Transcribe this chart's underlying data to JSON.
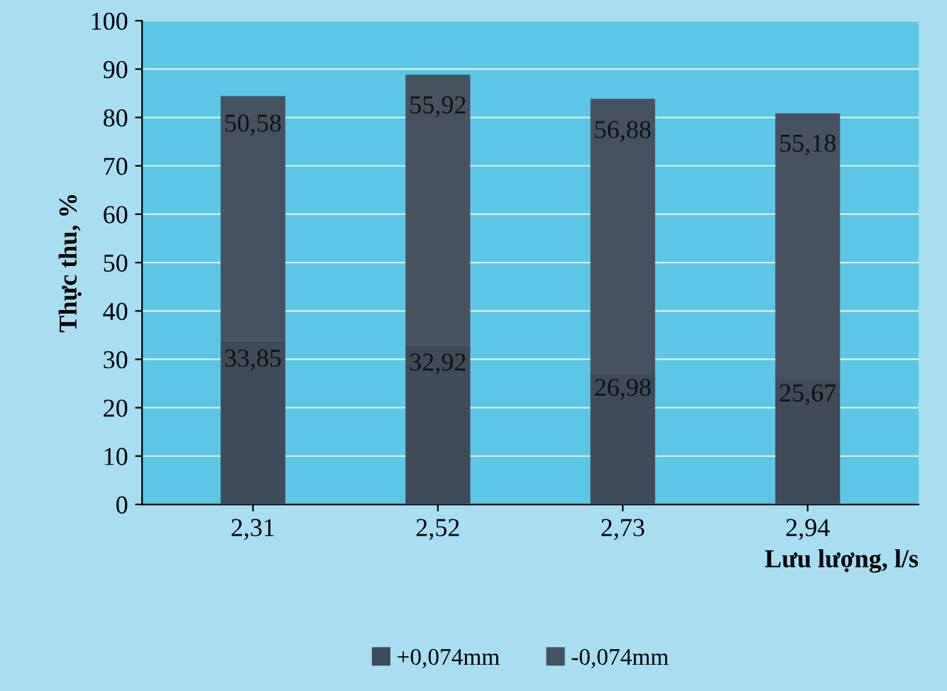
{
  "chart_data": {
    "type": "bar",
    "stacked": true,
    "xlabel": "Lưu lượng, l/s",
    "ylabel": "Thực thu, %",
    "categories": [
      "2,31",
      "2,52",
      "2,73",
      "2,94"
    ],
    "series": [
      {
        "name": "+0,074mm",
        "color": "#3f4b57",
        "values": [
          33.85,
          32.92,
          26.98,
          25.67
        ],
        "value_labels": [
          "33,85",
          "32,92",
          "26,98",
          "25,67"
        ]
      },
      {
        "name": "-0,074mm",
        "color": "#46535f",
        "values": [
          50.58,
          55.92,
          56.88,
          55.18
        ],
        "value_labels": [
          "50,58",
          "55,92",
          "56,88",
          "55,18"
        ]
      }
    ],
    "ylim": [
      0,
      100
    ],
    "yticks": [
      0,
      10,
      20,
      30,
      40,
      50,
      60,
      70,
      80,
      90,
      100
    ],
    "grid": "y",
    "legend": "bottom"
  }
}
